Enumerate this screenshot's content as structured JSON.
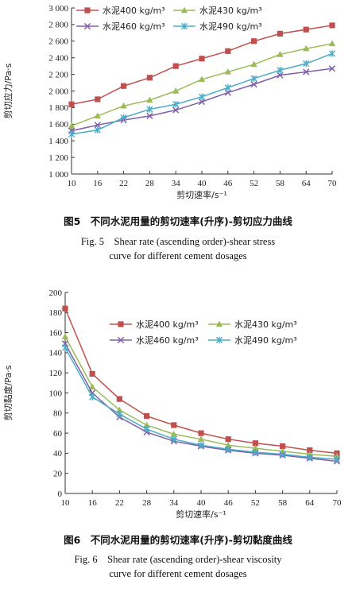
{
  "chart_data": [
    {
      "type": "line",
      "x": [
        10,
        16,
        22,
        28,
        34,
        40,
        46,
        52,
        58,
        64,
        70
      ],
      "xlim": [
        10,
        70
      ],
      "ylim": [
        1000,
        3000
      ],
      "yticks": [
        1000,
        1200,
        1400,
        1600,
        1800,
        2000,
        2200,
        2400,
        2600,
        2800,
        3000
      ],
      "ytick_labels": [
        "1 000",
        "1 200",
        "1 400",
        "1 600",
        "1 800",
        "2 000",
        "2 200",
        "2 400",
        "2 600",
        "2 800",
        "3 000"
      ],
      "xlabel": "剪切速率/s⁻¹",
      "ylabel": "剪切应力/Pa·s",
      "legend_placement": "top-left",
      "grid": false,
      "series": [
        {
          "name": "水泥400 kg/m³",
          "marker": "square",
          "color": "#c0504d",
          "values": [
            1840,
            1900,
            2060,
            2160,
            2300,
            2390,
            2480,
            2600,
            2690,
            2740,
            2790
          ]
        },
        {
          "name": "水泥430 kg/m³",
          "marker": "triangle",
          "color": "#9bbb59",
          "values": [
            1580,
            1700,
            1820,
            1890,
            2000,
            2140,
            2230,
            2320,
            2440,
            2510,
            2570
          ]
        },
        {
          "name": "水泥460 kg/m³",
          "marker": "x",
          "color": "#7f5fa8",
          "values": [
            1520,
            1590,
            1650,
            1700,
            1770,
            1870,
            1980,
            2080,
            2190,
            2230,
            2270
          ]
        },
        {
          "name": "水泥490 kg/m³",
          "marker": "star",
          "color": "#4bacc6",
          "values": [
            1480,
            1530,
            1680,
            1780,
            1840,
            1930,
            2040,
            2150,
            2250,
            2330,
            2450
          ]
        }
      ]
    },
    {
      "type": "line",
      "x": [
        10,
        16,
        22,
        28,
        34,
        40,
        46,
        52,
        58,
        64,
        70
      ],
      "xlim": [
        10,
        70
      ],
      "ylim": [
        0,
        200
      ],
      "yticks": [
        0,
        20,
        40,
        60,
        80,
        100,
        120,
        140,
        160,
        180,
        200
      ],
      "ytick_labels": [
        "0",
        "20",
        "40",
        "60",
        "80",
        "100",
        "120",
        "140",
        "160",
        "180",
        "200"
      ],
      "xlabel": "剪切速率/s⁻¹",
      "ylabel": "剪切黏度/Pa·s",
      "legend_placement": "top-right",
      "grid": false,
      "series": [
        {
          "name": "水泥400 kg/m³",
          "marker": "square",
          "color": "#c0504d",
          "values": [
            184,
            119,
            94,
            77,
            68,
            60,
            54,
            50,
            47,
            43,
            40
          ]
        },
        {
          "name": "水泥430 kg/m³",
          "marker": "triangle",
          "color": "#9bbb59",
          "values": [
            156,
            106,
            83,
            68,
            59,
            54,
            48,
            45,
            42,
            39,
            37
          ]
        },
        {
          "name": "水泥460 kg/m³",
          "marker": "x",
          "color": "#7f5fa8",
          "values": [
            149,
            100,
            76,
            61,
            52,
            47,
            43,
            40,
            38,
            35,
            32
          ]
        },
        {
          "name": "水泥490 kg/m³",
          "marker": "star",
          "color": "#4bacc6",
          "values": [
            145,
            96,
            79,
            64,
            54,
            48,
            44,
            41,
            39,
            36,
            34
          ]
        }
      ]
    }
  ],
  "captions": {
    "fig5_cn": "图5　不同水泥用量的剪切速率(升序)-剪切应力曲线",
    "fig5_en_1": "Fig. 5　Shear rate (ascending order)-shear stress",
    "fig5_en_2": "curve for different cement dosages",
    "fig6_cn": "图6　不同水泥用量的剪切速率(升序)-剪切黏度曲线",
    "fig6_en_1": "Fig. 6　Shear rate (ascending order)-shear viscosity",
    "fig6_en_2": "curve for different cement dosages"
  }
}
